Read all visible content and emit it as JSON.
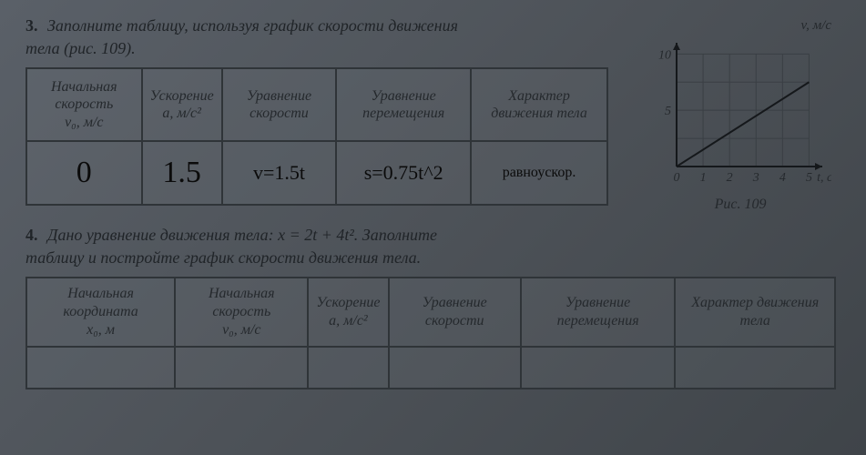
{
  "task3": {
    "number": "3.",
    "prompt_line1": "Заполните таблицу, используя график скорости движения",
    "prompt_line2": "тела (рис. 109).",
    "headers": {
      "h1": "Начальная скорость",
      "h1u": "v₀, м/с",
      "h2": "Ускорение",
      "h2u": "a, м/с²",
      "h3": "Уравнение скорости",
      "h4": "Уравнение перемещения",
      "h5": "Характер движения тела"
    },
    "row": {
      "v0": "0",
      "a": "1.5",
      "vel_eq": "v=1.5t",
      "disp_eq": "s=0.75t^2",
      "nature": "равноускор."
    }
  },
  "task4": {
    "number": "4.",
    "prompt_line1": "Дано уравнение движения тела: x = 2t + 4t². Заполните",
    "prompt_line2": "таблицу и постройте график скорости движения тела.",
    "headers": {
      "h1": "Начальная координата",
      "h1u": "x₀, м",
      "h2": "Начальная скорость",
      "h2u": "v₀, м/с",
      "h3": "Ускорение",
      "h3u": "a, м/с²",
      "h4": "Уравнение скорости",
      "h5": "Уравнение перемещения",
      "h6": "Характер движения тела"
    }
  },
  "chart": {
    "type": "line",
    "y_axis_label": "v, м/с",
    "x_axis_label": "t, c",
    "caption": "Рис. 109",
    "xlim": [
      0,
      5.5
    ],
    "ylim": [
      0,
      11
    ],
    "xticks": [
      0,
      1,
      2,
      3,
      4,
      5
    ],
    "yticks": [
      5,
      10
    ],
    "grid_step_x": 1,
    "grid_step_y": 2.5,
    "grid_color": "#3a3f44",
    "axis_color": "#15181b",
    "line_color": "#15181b",
    "line_points": [
      [
        0,
        0
      ],
      [
        5,
        7.5
      ]
    ],
    "background_color": "transparent",
    "line_width": 2,
    "font_size": 14
  }
}
